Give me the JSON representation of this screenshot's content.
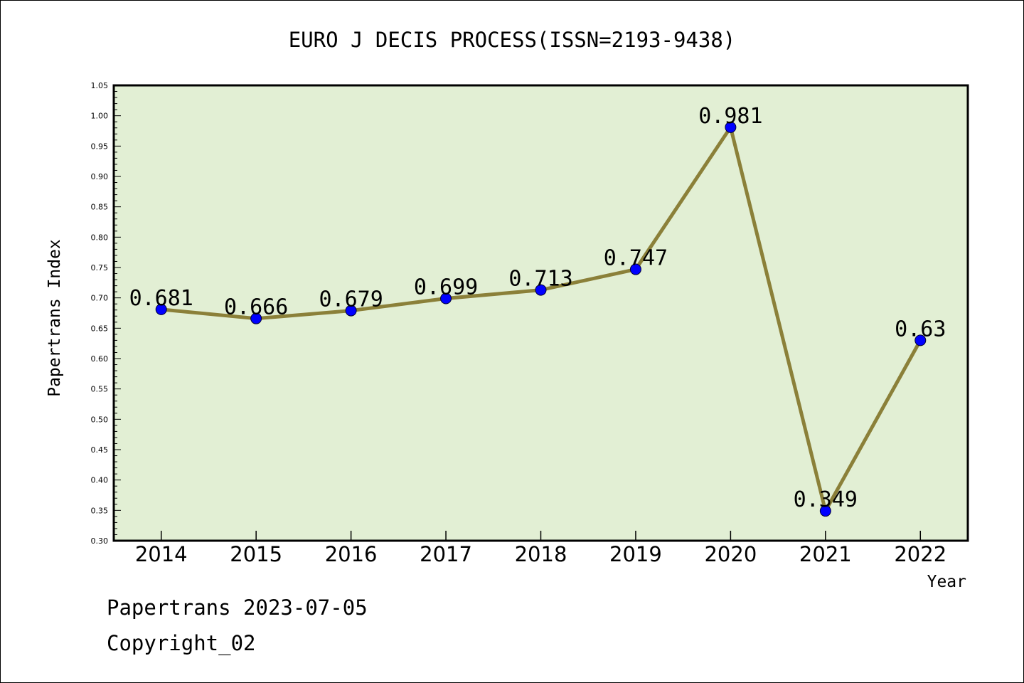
{
  "footer": {
    "line1": "Papertrans 2023-07-05",
    "line2": "Copyright_02"
  },
  "colors": {
    "plot_background": "#e2efd4",
    "line": "#8b8039",
    "marker": "#0000ff"
  },
  "chart_data": {
    "type": "line",
    "title": "EURO J DECIS PROCESS(ISSN=2193-9438)",
    "xlabel": "Year",
    "ylabel": "Papertrans Index",
    "categories": [
      "2014",
      "2015",
      "2016",
      "2017",
      "2018",
      "2019",
      "2020",
      "2021",
      "2022"
    ],
    "series": [
      {
        "values": [
          0.681,
          0.666,
          0.679,
          0.699,
          0.713,
          0.747,
          0.981,
          0.349,
          0.63
        ],
        "labels": [
          "0.681",
          "0.666",
          "0.679",
          "0.699",
          "0.713",
          "0.747",
          "0.981",
          "0.349",
          "0.63"
        ]
      }
    ],
    "ylim": [
      0.3,
      1.05
    ],
    "yticks": [
      "0.30",
      "0.35",
      "0.40",
      "0.45",
      "0.50",
      "0.55",
      "0.60",
      "0.65",
      "0.70",
      "0.75",
      "0.80",
      "0.85",
      "0.90",
      "0.95",
      "1.00",
      "1.05"
    ],
    "grid": false,
    "legend": "none"
  }
}
